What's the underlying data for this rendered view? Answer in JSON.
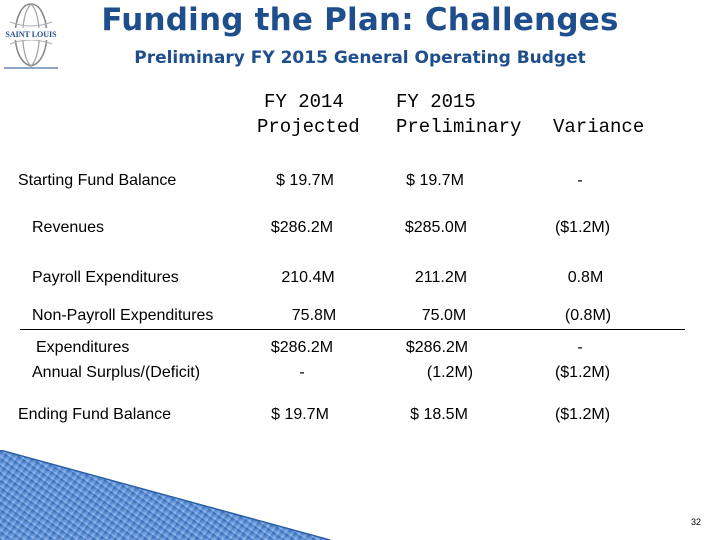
{
  "header": {
    "title": "Funding the Plan: Challenges",
    "subtitle": "Preliminary FY 2015 General Operating Budget"
  },
  "columns": {
    "fy2014_line1": "FY 2014",
    "fy2014_line2": "Projected",
    "fy2015_line1": "FY 2015",
    "fy2015_line2": "Preliminary",
    "variance": "Variance"
  },
  "rows": {
    "starting": {
      "label": "Starting Fund Balance",
      "fy2014": "$ 19.7M",
      "fy2015": "$ 19.7M",
      "variance": "-"
    },
    "revenues": {
      "label": "Revenues",
      "fy2014": "$286.2M",
      "fy2015": "$285.0M",
      "variance": "($1.2M)"
    },
    "payroll": {
      "label": "Payroll Expenditures",
      "fy2014": "210.4M",
      "fy2015": "211.2M",
      "variance": "0.8M"
    },
    "nonpayroll": {
      "label": "Non-Payroll Expenditures",
      "fy2014": "75.8M",
      "fy2015": "75.0M",
      "variance": "(0.8M)"
    },
    "expenditures": {
      "label": "Expenditures",
      "fy2014": "$286.2M",
      "fy2015": "$286.2M",
      "variance": "-"
    },
    "surplus": {
      "label": "Annual Surplus/(Deficit)",
      "fy2014": "-",
      "fy2015": "(1.2M)",
      "variance": "($1.2M)"
    },
    "ending": {
      "label": "Ending Fund Balance",
      "fy2014": "$ 19.7M",
      "fy2015": "$ 18.5M",
      "variance": "($1.2M)"
    }
  },
  "logo": {
    "text": "SAINT LOUIS",
    "color": "#1f4e8c"
  },
  "page_number": "32",
  "colors": {
    "title": "#1f4e8c",
    "corner": "#4a7fc8"
  }
}
